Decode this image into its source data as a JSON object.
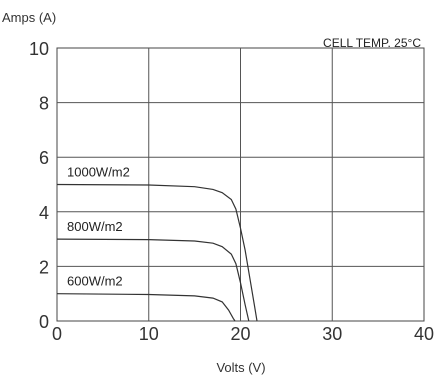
{
  "chart_data": {
    "type": "line",
    "title": "",
    "xlabel": "Volts (V)",
    "ylabel": "Amps (A)",
    "annotation": "CELL TEMP. 25°C",
    "xlim": [
      0,
      40
    ],
    "ylim": [
      0,
      10
    ],
    "xticks": [
      0,
      10,
      20,
      30,
      40
    ],
    "yticks": [
      0,
      2,
      4,
      6,
      8,
      10
    ],
    "grid": true,
    "line_color": "#333333",
    "series": [
      {
        "name": "1000W/m2",
        "points": [
          [
            0,
            5.0
          ],
          [
            10,
            4.98
          ],
          [
            15,
            4.92
          ],
          [
            17,
            4.82
          ],
          [
            18,
            4.7
          ],
          [
            19,
            4.45
          ],
          [
            19.5,
            4.1
          ],
          [
            20,
            3.4
          ],
          [
            20.5,
            2.6
          ],
          [
            21,
            1.6
          ],
          [
            21.5,
            0.6
          ],
          [
            21.8,
            0
          ]
        ]
      },
      {
        "name": "800W/m2",
        "points": [
          [
            0,
            3.0
          ],
          [
            10,
            2.98
          ],
          [
            15,
            2.93
          ],
          [
            17,
            2.85
          ],
          [
            18,
            2.72
          ],
          [
            19,
            2.45
          ],
          [
            19.5,
            2.1
          ],
          [
            20,
            1.4
          ],
          [
            20.5,
            0.6
          ],
          [
            20.9,
            0
          ]
        ]
      },
      {
        "name": "600W/m2",
        "points": [
          [
            0,
            1.0
          ],
          [
            10,
            0.97
          ],
          [
            15,
            0.92
          ],
          [
            17,
            0.84
          ],
          [
            18,
            0.7
          ],
          [
            18.7,
            0.4
          ],
          [
            19.2,
            0.1
          ],
          [
            19.4,
            0
          ]
        ]
      }
    ]
  }
}
